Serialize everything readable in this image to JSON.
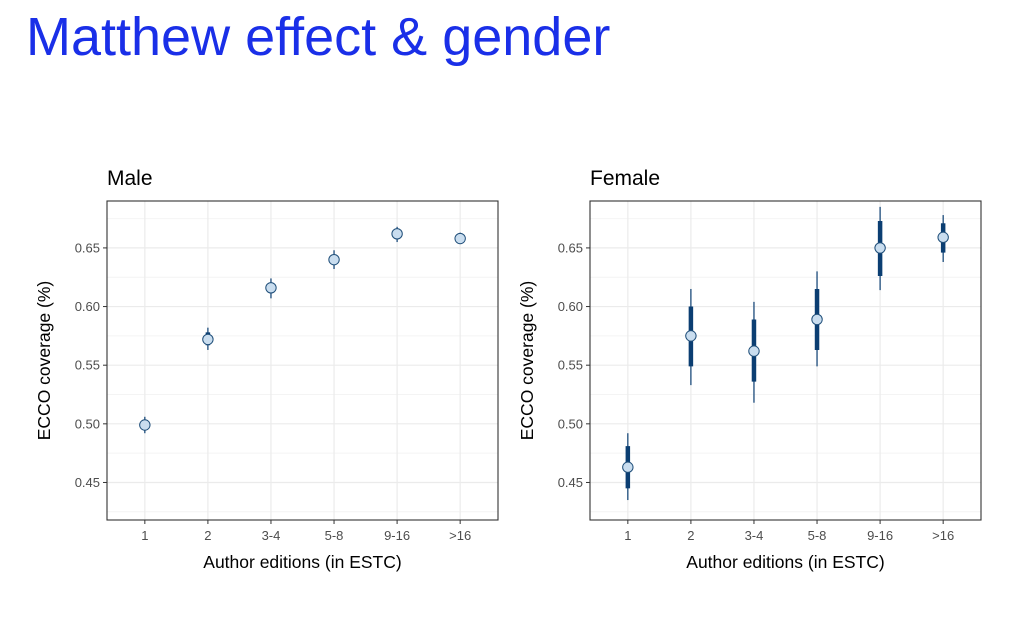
{
  "page": {
    "title": "Matthew effect & gender"
  },
  "chart_data": [
    {
      "type": "scatter",
      "title": "Male",
      "xlabel": "Author editions (in ESTC)",
      "ylabel": "ECCO coverage (%)",
      "categories": [
        "1",
        "2",
        "3-4",
        "5-8",
        "9-16",
        ">16"
      ],
      "y_ticks": [
        0.45,
        0.5,
        0.55,
        0.6,
        0.65
      ],
      "y_tick_labels": [
        "0.45",
        "0.50",
        "0.55",
        "0.60",
        "0.65"
      ],
      "ylim": [
        0.418,
        0.69
      ],
      "grid": true,
      "series": [
        {
          "values": [
            0.499,
            0.572,
            0.616,
            0.64,
            0.662,
            0.658
          ],
          "inner_interval": [
            [
              0.495,
              0.503
            ],
            [
              0.567,
              0.578
            ],
            [
              0.612,
              0.62
            ],
            [
              0.636,
              0.644
            ],
            [
              0.659,
              0.665
            ],
            [
              0.656,
              0.66
            ]
          ],
          "outer_interval": [
            [
              0.492,
              0.506
            ],
            [
              0.563,
              0.582
            ],
            [
              0.607,
              0.624
            ],
            [
              0.632,
              0.648
            ],
            [
              0.655,
              0.668
            ],
            [
              0.654,
              0.663
            ]
          ]
        }
      ]
    },
    {
      "type": "scatter",
      "title": "Female",
      "xlabel": "Author editions (in ESTC)",
      "ylabel": "ECCO coverage (%)",
      "categories": [
        "1",
        "2",
        "3-4",
        "5-8",
        "9-16",
        ">16"
      ],
      "y_ticks": [
        0.45,
        0.5,
        0.55,
        0.6,
        0.65
      ],
      "y_tick_labels": [
        "0.45",
        "0.50",
        "0.55",
        "0.60",
        "0.65"
      ],
      "ylim": [
        0.418,
        0.69
      ],
      "grid": true,
      "series": [
        {
          "values": [
            0.463,
            0.575,
            0.562,
            0.589,
            0.65,
            0.659
          ],
          "inner_interval": [
            [
              0.445,
              0.481
            ],
            [
              0.549,
              0.6
            ],
            [
              0.536,
              0.589
            ],
            [
              0.563,
              0.615
            ],
            [
              0.626,
              0.673
            ],
            [
              0.646,
              0.671
            ]
          ],
          "outer_interval": [
            [
              0.435,
              0.492
            ],
            [
              0.533,
              0.615
            ],
            [
              0.518,
              0.604
            ],
            [
              0.549,
              0.63
            ],
            [
              0.614,
              0.685
            ],
            [
              0.638,
              0.678
            ]
          ]
        }
      ]
    }
  ],
  "colors": {
    "title": "#1a2fe8",
    "interval": "#0b3e72",
    "point_fill": "#c9ddef",
    "point_stroke": "#1f4e79",
    "grid_major": "#ebebeb",
    "grid_minor": "#f4f4f4",
    "panel_border": "#333333"
  }
}
